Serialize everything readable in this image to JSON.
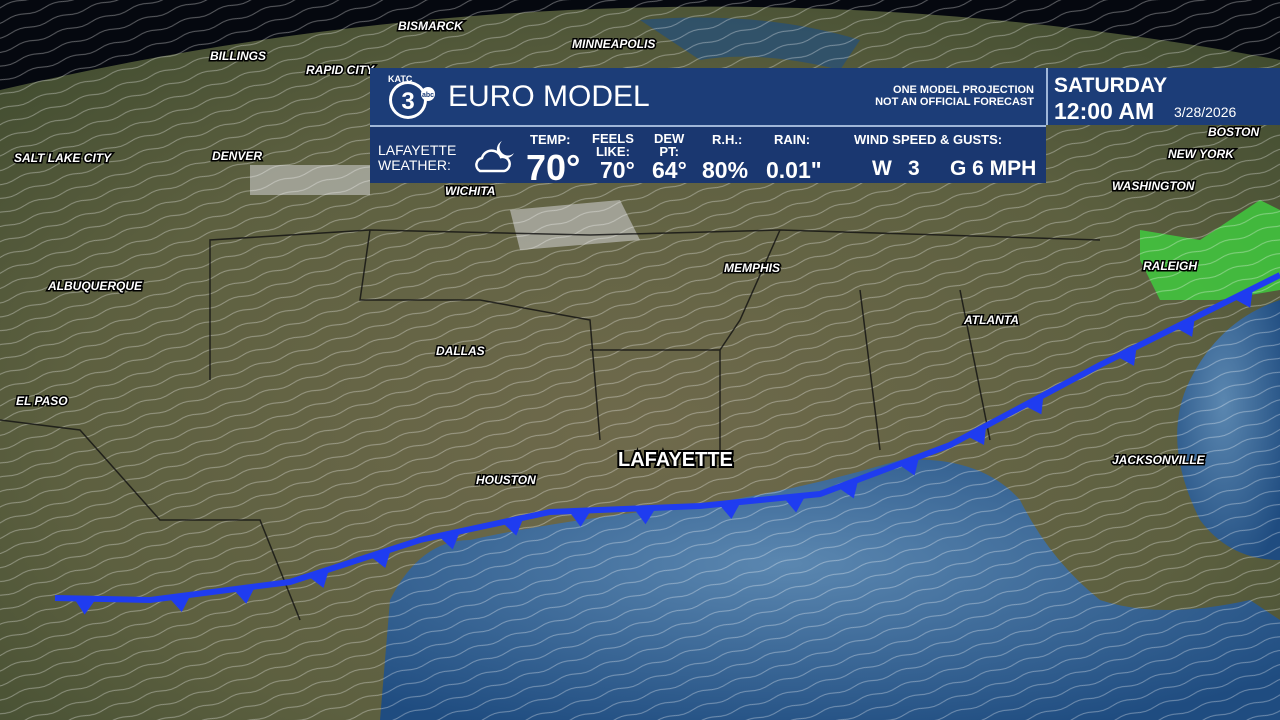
{
  "logo": {
    "station": "KATC",
    "number": "3",
    "network": "abc"
  },
  "header": {
    "title": "EURO MODEL",
    "disclaimer": [
      "ONE MODEL PROJECTION",
      "NOT AN OFFICIAL FORECAST"
    ],
    "day": "SATURDAY",
    "time": "12:00 AM",
    "date": "3/28/2026"
  },
  "conditions": {
    "location": [
      "LAFAYETTE",
      "WEATHER:"
    ],
    "temp": {
      "label": "TEMP:",
      "value": "70°"
    },
    "feels_like": {
      "label": [
        "FEELS",
        "LIKE:"
      ],
      "value": "70°"
    },
    "dew_point": {
      "label": [
        "DEW",
        "PT:"
      ],
      "value": "64°"
    },
    "rh": {
      "label": "R.H.:",
      "value": "80%"
    },
    "rain": {
      "label": "RAIN:",
      "value": "0.01\""
    },
    "wind": {
      "label": "WIND SPEED & GUSTS:",
      "direction": "W",
      "speed": "3",
      "gusts": "G 6 MPH"
    }
  },
  "cities": [
    "BISMARCK",
    "MINNEAPOLIS",
    "BILLINGS",
    "RAPID CITY",
    "SALT LAKE CITY",
    "DENVER",
    "WICHITA",
    "BOSTON",
    "NEW YORK",
    "WASHINGTON",
    "RALEIGH",
    "MEMPHIS",
    "ALBUQUERQUE",
    "ATLANTA",
    "DALLAS",
    "EL PASO",
    "HOUSTON",
    "LAFAYETTE",
    "JACKSONVILLE"
  ]
}
